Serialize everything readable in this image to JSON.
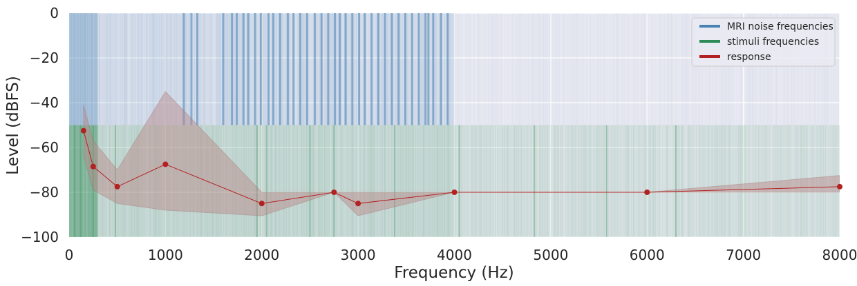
{
  "chart_data": {
    "type": "line",
    "title": "",
    "xlabel": "Frequency (Hz)",
    "ylabel": "Level (dBFS)",
    "xlim": [
      0,
      8000
    ],
    "ylim": [
      -100,
      0
    ],
    "x_ticks": [
      0,
      1000,
      2000,
      3000,
      4000,
      5000,
      6000,
      7000,
      8000
    ],
    "y_ticks": [
      0,
      -20,
      -40,
      -60,
      -80,
      -100
    ],
    "grid": true,
    "legend_position": "top-right",
    "colors": {
      "background": "#eaeaf2",
      "grid": "#ffffff",
      "mri": "#4682b4",
      "stimuli": "#2e8b57",
      "response": "#b22222",
      "band": "#b98686"
    },
    "series": [
      {
        "name": "MRI noise frequencies",
        "kind": "vertical-lines",
        "level_range": [
          -50,
          0
        ],
        "dense_range": [
          0,
          4000
        ],
        "faint_range": [
          4000,
          8000
        ],
        "emphasized_x": [
          1190,
          1270,
          1330,
          1600,
          1690,
          1740,
          1810,
          1860,
          1930,
          1990,
          2070,
          2120,
          2190,
          2270,
          2330,
          2400,
          2470,
          2550,
          2620,
          2690,
          2760,
          2810,
          2870,
          2940,
          3010,
          3070,
          3140,
          3210,
          3280,
          3350,
          3420,
          3490,
          3560,
          3630,
          3700,
          3730,
          3780,
          3860,
          3930
        ]
      },
      {
        "name": "stimuli frequencies",
        "kind": "vertical-lines",
        "level_range": [
          -100,
          -50
        ],
        "range": [
          0,
          8000
        ],
        "emphasized_x": [
          60,
          120,
          250,
          480,
          1950,
          2050,
          2500,
          2750,
          3380,
          4050,
          4830,
          5580,
          6300
        ]
      },
      {
        "name": "response",
        "kind": "line",
        "x": [
          150,
          250,
          500,
          1000,
          2000,
          2750,
          3000,
          4000,
          6000,
          8000
        ],
        "y": [
          -52.5,
          -68.5,
          -77.5,
          -67.5,
          -85,
          -80,
          -85,
          -80,
          -80,
          -77.5
        ],
        "band_upper": [
          -41,
          -57,
          -70,
          -35,
          -80,
          -80,
          -80,
          -80,
          -80,
          -72.5
        ],
        "band_lower": [
          -64,
          -79,
          -85,
          -88,
          -90.5,
          -80,
          -90.5,
          -80,
          -80,
          -80
        ]
      }
    ]
  }
}
